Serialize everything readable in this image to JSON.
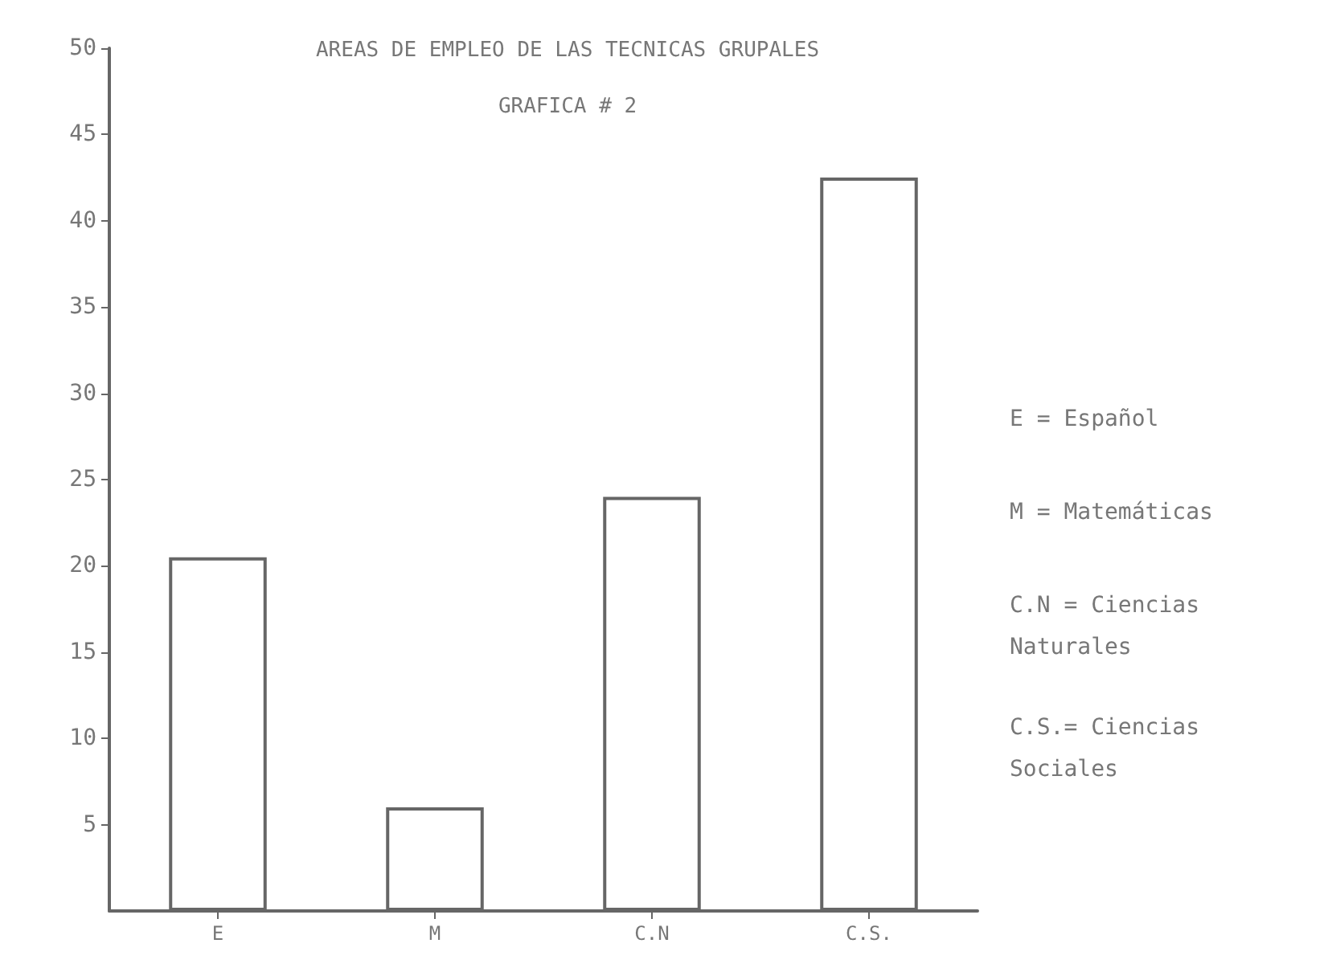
{
  "chart_data": {
    "type": "bar",
    "title": "AREAS DE EMPLEO DE LAS TECNICAS GRUPALES",
    "subtitle": "GRAFICA # 2",
    "categories": [
      "E",
      "M",
      "C.N",
      "C.S."
    ],
    "values": [
      20.5,
      6,
      24,
      42.5
    ],
    "color": "#ffffff",
    "ylim": [
      0,
      50
    ],
    "yticks": [
      5,
      10,
      15,
      20,
      25,
      30,
      35,
      40,
      45,
      50
    ],
    "grid": false,
    "annotations": [
      "E = Español",
      "M = Matemáticas",
      "C.N = Ciencias\nNaturales",
      "C.S.= Ciencias\nSociales"
    ]
  }
}
